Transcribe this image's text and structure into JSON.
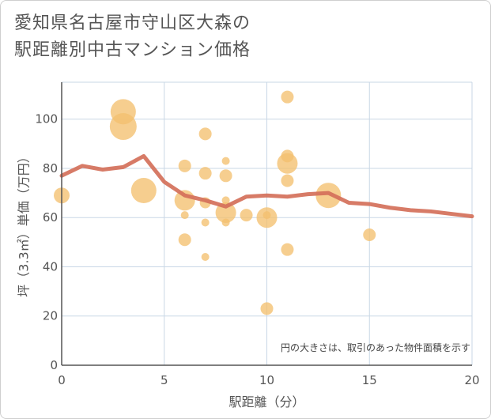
{
  "title_line1": "愛知県名古屋市守山区大森の",
  "title_line2": "駅距離別中古マンション価格",
  "colors": {
    "bubble": "#f3c06f",
    "line": "#d4705a",
    "grid": "#c9d7e6",
    "axis": "#555555"
  },
  "chart_data": {
    "type": "scatter",
    "xlabel": "駅距離（分）",
    "ylabel": "坪（3.3㎡）単価（万円）",
    "xlim": [
      0,
      20
    ],
    "ylim": [
      0,
      115
    ],
    "xticks": [
      "0",
      "5",
      "10",
      "15",
      "20"
    ],
    "yticks": [
      "0",
      "20",
      "40",
      "60",
      "80",
      "100"
    ],
    "note": "円の大きさは、取引のあった物件面積を示す",
    "bubbles": [
      {
        "x": 0,
        "y": 69,
        "s": 10
      },
      {
        "x": 3,
        "y": 103,
        "s": 16
      },
      {
        "x": 3,
        "y": 97,
        "s": 17
      },
      {
        "x": 4,
        "y": 71,
        "s": 16
      },
      {
        "x": 6,
        "y": 81,
        "s": 8
      },
      {
        "x": 6,
        "y": 67,
        "s": 13
      },
      {
        "x": 6,
        "y": 61,
        "s": 5
      },
      {
        "x": 6,
        "y": 51,
        "s": 8
      },
      {
        "x": 7,
        "y": 94,
        "s": 8
      },
      {
        "x": 7,
        "y": 78,
        "s": 8
      },
      {
        "x": 7,
        "y": 66,
        "s": 7
      },
      {
        "x": 7,
        "y": 58,
        "s": 5
      },
      {
        "x": 7,
        "y": 44,
        "s": 5
      },
      {
        "x": 8,
        "y": 83,
        "s": 5
      },
      {
        "x": 8,
        "y": 77,
        "s": 8
      },
      {
        "x": 8,
        "y": 67,
        "s": 5
      },
      {
        "x": 8,
        "y": 62,
        "s": 13
      },
      {
        "x": 8,
        "y": 58,
        "s": 5
      },
      {
        "x": 9,
        "y": 61,
        "s": 8
      },
      {
        "x": 10,
        "y": 60,
        "s": 13
      },
      {
        "x": 10,
        "y": 61,
        "s": 5
      },
      {
        "x": 10,
        "y": 23,
        "s": 8
      },
      {
        "x": 11,
        "y": 109,
        "s": 8
      },
      {
        "x": 11,
        "y": 85,
        "s": 8
      },
      {
        "x": 11,
        "y": 82,
        "s": 13
      },
      {
        "x": 11,
        "y": 75,
        "s": 8
      },
      {
        "x": 11,
        "y": 47,
        "s": 8
      },
      {
        "x": 13,
        "y": 69,
        "s": 16
      },
      {
        "x": 15,
        "y": 53,
        "s": 8
      }
    ],
    "line": {
      "x": [
        0,
        1,
        2,
        3,
        4,
        5,
        6,
        7,
        8,
        9,
        10,
        11,
        12,
        13,
        14,
        15,
        16,
        17,
        18,
        19,
        20
      ],
      "y": [
        77,
        81,
        79.5,
        80.5,
        85,
        74.5,
        69,
        67,
        64.5,
        68.5,
        69,
        68.5,
        69.5,
        70,
        66,
        65.5,
        64,
        63,
        62.5,
        61.5,
        60.5
      ]
    }
  }
}
